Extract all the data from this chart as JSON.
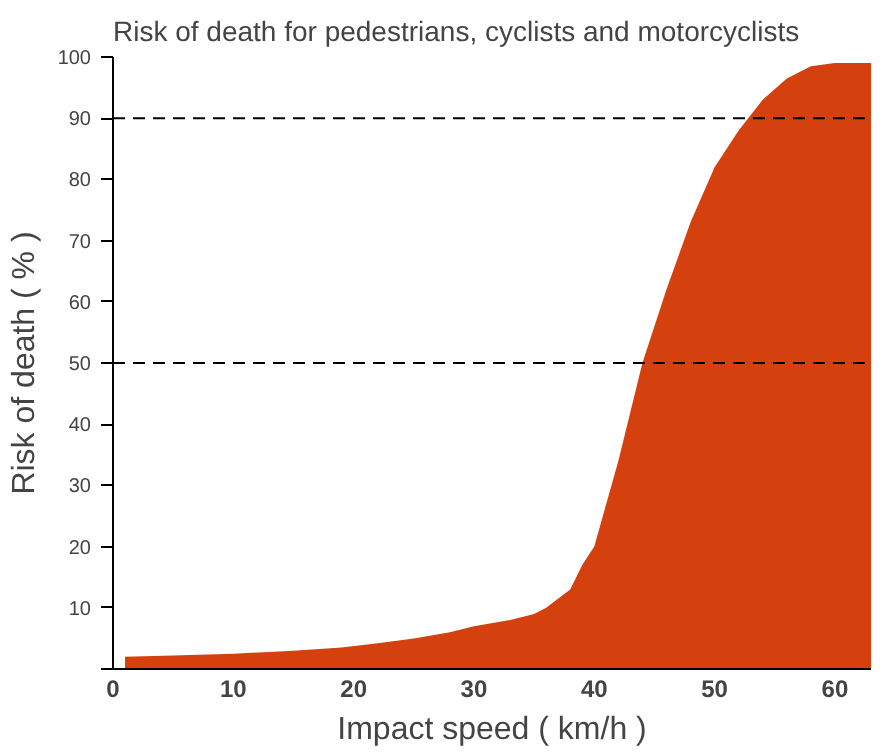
{
  "chart_data": {
    "type": "area",
    "title": "Risk of death for pedestrians, cyclists and motorcyclists",
    "xlabel": "Impact speed ( km/h )",
    "ylabel": "Risk of death ( % )",
    "x": [
      1,
      5,
      10,
      15,
      19,
      22,
      25,
      28,
      30,
      33,
      35,
      36,
      38,
      39,
      40,
      42,
      44,
      46,
      48,
      50,
      52,
      54,
      56,
      58,
      60,
      63
    ],
    "series": [
      {
        "color": "#d4400e",
        "values": [
          2,
          2.2,
          2.5,
          3,
          3.5,
          4.2,
          5,
          6,
          7,
          8,
          9,
          10,
          13,
          17,
          20,
          34,
          50,
          62,
          73,
          82,
          88,
          93,
          96.5,
          98.5,
          99,
          99
        ]
      }
    ],
    "xlim": [
      0,
      63
    ],
    "ylim": [
      0,
      100
    ],
    "xticks": [
      0,
      10,
      20,
      30,
      40,
      50,
      60
    ],
    "yticks": [
      {
        "value": 0,
        "label": null
      },
      10,
      20,
      30,
      40,
      50,
      60,
      70,
      80,
      90,
      100
    ],
    "ref_lines": [
      {
        "axis": "y",
        "value": 50,
        "line_style": "dashed"
      },
      {
        "axis": "y",
        "value": 90,
        "line_style": "dashed"
      }
    ],
    "grid": false
  }
}
